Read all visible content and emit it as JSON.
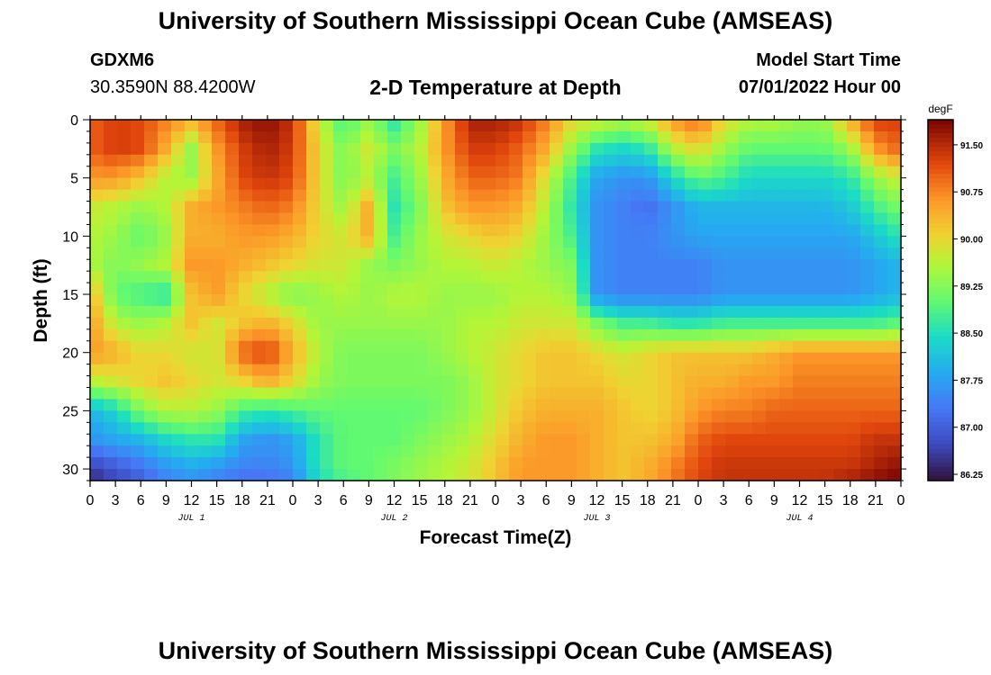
{
  "header": {
    "title": "University of Southern Mississippi Ocean Cube (AMSEAS)",
    "station": "GDXM6",
    "coords": "30.3590N  88.4200W",
    "plot_title": "2-D Temperature at Depth",
    "start_label": "Model Start Time",
    "start_value": "07/01/2022 Hour 00"
  },
  "footer": {
    "title": "University of Southern Mississippi Ocean Cube (AMSEAS)"
  },
  "chart_data": {
    "type": "heatmap",
    "xlabel": "Forecast Time(Z)",
    "ylabel": "Depth (ft)",
    "units": "degF",
    "x_tick_labels": [
      "0",
      "3",
      "6",
      "9",
      "12",
      "15",
      "18",
      "21",
      "0",
      "3",
      "6",
      "9",
      "12",
      "15",
      "18",
      "21",
      "0",
      "3",
      "6",
      "9",
      "12",
      "15",
      "18",
      "21",
      "0",
      "3",
      "6",
      "9",
      "12",
      "15",
      "18",
      "21",
      "0"
    ],
    "x_range_hours": [
      0,
      96
    ],
    "day_labels": [
      {
        "label": "JUL 1",
        "hour": 12
      },
      {
        "label": "JUL 2",
        "hour": 36
      },
      {
        "label": "JUL 3",
        "hour": 60
      },
      {
        "label": "JUL 4",
        "hour": 84
      }
    ],
    "y_ticks": [
      0,
      5,
      10,
      15,
      20,
      25,
      30
    ],
    "y_tick_labels": [
      "0",
      "5",
      "10",
      "15",
      "20",
      "25",
      "30"
    ],
    "y_range": [
      0,
      31
    ],
    "colorbar_ticks": [
      86.25,
      87.0,
      87.75,
      88.5,
      89.25,
      90.0,
      90.75,
      91.5
    ],
    "colorbar_tick_labels": [
      "86.25",
      "87.00",
      "87.75",
      "88.50",
      "89.25",
      "90.00",
      "90.75",
      "91.50"
    ],
    "colorbar_range": [
      86.15,
      91.9
    ],
    "depths_ft": [
      0,
      2.5,
      5,
      7.5,
      10,
      12.5,
      15,
      17.5,
      20,
      22.5,
      25,
      27.5,
      30,
      31
    ],
    "times_hr": [
      0,
      3,
      6,
      9,
      12,
      15,
      18,
      21,
      24,
      27,
      30,
      33,
      36,
      39,
      42,
      45,
      48,
      51,
      54,
      57,
      60,
      63,
      66,
      69,
      72,
      75,
      78,
      81,
      84,
      87,
      90,
      93,
      96
    ],
    "temperature_degF": [
      [
        91.0,
        91.3,
        91.2,
        90.8,
        90.4,
        91.0,
        91.6,
        91.8,
        91.4,
        89.8,
        88.8,
        89.4,
        88.6,
        89.4,
        90.6,
        91.6,
        91.6,
        91.4,
        90.8,
        90.0,
        89.8,
        89.6,
        89.8,
        90.6,
        91.0,
        90.0,
        89.6,
        89.6,
        89.4,
        89.4,
        90.4,
        91.3,
        91.3
      ],
      [
        91.0,
        91.3,
        91.2,
        90.4,
        89.4,
        90.6,
        91.3,
        91.6,
        91.3,
        90.0,
        89.2,
        89.8,
        89.2,
        89.6,
        90.6,
        91.3,
        91.3,
        91.0,
        90.4,
        89.4,
        88.6,
        88.4,
        88.6,
        89.6,
        90.0,
        89.4,
        89.0,
        89.0,
        89.0,
        89.0,
        89.4,
        90.6,
        91.0
      ],
      [
        90.6,
        90.6,
        90.2,
        89.6,
        89.4,
        90.4,
        91.2,
        91.4,
        91.2,
        90.0,
        89.2,
        89.6,
        88.8,
        89.4,
        90.4,
        91.0,
        91.0,
        90.8,
        89.8,
        88.8,
        87.8,
        87.6,
        87.6,
        88.4,
        89.0,
        88.8,
        88.4,
        88.4,
        88.4,
        88.4,
        88.6,
        89.4,
        89.8
      ],
      [
        89.8,
        89.6,
        89.4,
        89.6,
        90.4,
        90.6,
        90.8,
        91.0,
        90.8,
        90.0,
        89.4,
        90.4,
        88.6,
        89.2,
        90.2,
        90.6,
        90.6,
        90.4,
        89.6,
        88.6,
        87.6,
        87.4,
        87.2,
        87.6,
        88.0,
        88.0,
        88.0,
        88.0,
        88.0,
        88.0,
        88.2,
        88.8,
        89.2
      ],
      [
        89.6,
        89.4,
        89.0,
        89.4,
        90.4,
        90.4,
        90.6,
        90.6,
        90.4,
        90.0,
        89.8,
        90.4,
        88.8,
        89.4,
        89.8,
        90.0,
        90.2,
        90.0,
        89.4,
        88.8,
        87.6,
        87.4,
        87.4,
        87.6,
        87.8,
        87.8,
        87.8,
        87.8,
        87.8,
        87.8,
        87.8,
        88.2,
        88.6
      ],
      [
        89.6,
        89.2,
        89.4,
        89.6,
        90.6,
        90.6,
        90.4,
        90.2,
        90.0,
        89.8,
        89.8,
        89.4,
        89.2,
        89.4,
        89.6,
        89.6,
        89.8,
        89.6,
        89.4,
        89.2,
        87.6,
        87.4,
        87.4,
        87.4,
        87.4,
        87.6,
        87.6,
        87.6,
        87.6,
        87.6,
        87.6,
        87.8,
        88.0
      ],
      [
        90.4,
        89.0,
        88.8,
        88.6,
        90.2,
        90.6,
        90.0,
        89.6,
        89.2,
        89.4,
        89.6,
        89.4,
        89.6,
        89.6,
        89.4,
        89.4,
        89.4,
        89.6,
        89.6,
        89.4,
        87.6,
        87.4,
        87.4,
        87.4,
        87.4,
        87.6,
        87.6,
        87.6,
        87.6,
        87.6,
        87.6,
        87.8,
        88.0
      ],
      [
        90.6,
        89.6,
        89.4,
        89.6,
        90.2,
        89.8,
        90.2,
        90.4,
        90.0,
        89.4,
        89.4,
        89.4,
        89.4,
        89.4,
        89.4,
        89.6,
        89.6,
        89.8,
        89.8,
        89.8,
        89.2,
        88.8,
        88.8,
        88.6,
        88.6,
        88.8,
        88.8,
        88.8,
        88.8,
        88.8,
        88.8,
        88.8,
        89.0
      ],
      [
        90.6,
        90.4,
        90.0,
        90.0,
        89.8,
        89.8,
        91.0,
        91.3,
        90.4,
        89.6,
        89.2,
        89.2,
        89.2,
        89.2,
        89.4,
        89.6,
        89.8,
        90.0,
        90.2,
        90.2,
        90.0,
        89.8,
        90.0,
        90.2,
        90.2,
        90.2,
        90.2,
        90.4,
        90.6,
        90.6,
        90.6,
        90.6,
        90.6
      ],
      [
        89.6,
        89.8,
        90.0,
        90.2,
        90.0,
        89.8,
        90.0,
        90.4,
        90.0,
        89.4,
        89.2,
        89.2,
        89.2,
        89.2,
        89.2,
        89.4,
        89.8,
        90.0,
        90.2,
        90.2,
        90.2,
        90.0,
        90.0,
        90.2,
        90.4,
        90.4,
        90.6,
        90.6,
        90.8,
        90.8,
        90.8,
        90.8,
        90.8
      ],
      [
        88.0,
        88.4,
        89.2,
        89.6,
        89.6,
        89.4,
        88.8,
        88.6,
        88.8,
        89.0,
        89.0,
        89.0,
        89.0,
        89.0,
        89.2,
        89.4,
        89.8,
        90.2,
        90.4,
        90.4,
        90.4,
        90.2,
        90.0,
        90.2,
        90.6,
        90.8,
        90.8,
        91.0,
        91.0,
        91.0,
        91.0,
        91.0,
        91.0
      ],
      [
        87.6,
        87.8,
        88.0,
        88.4,
        88.6,
        88.6,
        87.8,
        87.6,
        87.8,
        88.6,
        89.0,
        89.0,
        89.0,
        89.2,
        89.4,
        89.6,
        90.0,
        90.4,
        90.6,
        90.6,
        90.4,
        90.2,
        90.2,
        90.4,
        91.0,
        91.2,
        91.2,
        91.2,
        91.2,
        91.2,
        91.2,
        91.4,
        91.4
      ],
      [
        86.6,
        86.9,
        87.2,
        87.6,
        87.8,
        87.6,
        87.4,
        87.4,
        87.6,
        88.6,
        89.0,
        89.0,
        89.2,
        89.4,
        89.6,
        89.8,
        90.2,
        90.6,
        90.6,
        90.6,
        90.4,
        90.2,
        90.4,
        90.8,
        91.2,
        91.4,
        91.4,
        91.4,
        91.4,
        91.4,
        91.4,
        91.6,
        91.8
      ],
      [
        86.4,
        86.7,
        87.0,
        87.4,
        87.6,
        87.4,
        87.2,
        87.2,
        87.4,
        88.4,
        88.8,
        89.0,
        89.2,
        89.4,
        89.6,
        89.8,
        90.2,
        90.6,
        90.6,
        90.6,
        90.4,
        90.2,
        90.4,
        90.8,
        91.2,
        91.4,
        91.4,
        91.4,
        91.4,
        91.4,
        91.6,
        91.8,
        91.9
      ]
    ]
  }
}
